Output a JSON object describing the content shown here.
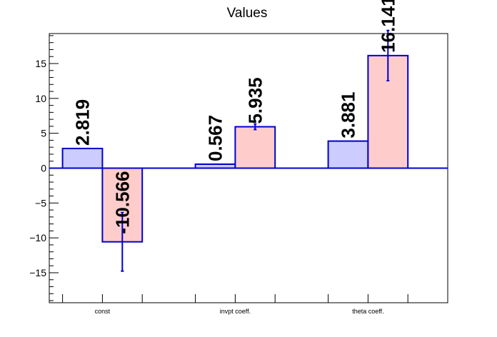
{
  "chart_data": {
    "type": "bar",
    "title": "Values",
    "xlabel": "",
    "ylabel": "",
    "ylim": [
      -19.3,
      19.3
    ],
    "yticks": [
      -15,
      -10,
      -5,
      0,
      5,
      10,
      15
    ],
    "ytick_labels": [
      "−15",
      "−10",
      "−5",
      "0",
      "5",
      "10",
      "15"
    ],
    "categories": [
      "const",
      "invpt coeff.",
      "theta coeff."
    ],
    "series": [
      {
        "values": [
          2.819,
          0.567,
          3.881
        ],
        "labels": [
          "2.819",
          "0.567",
          "3.881"
        ],
        "errors": [
          0,
          0,
          0
        ],
        "fill": "#ccccff",
        "stroke": "#0000cc"
      },
      {
        "values": [
          -10.566,
          5.935,
          16.141
        ],
        "labels": [
          "-10.566",
          "5.935",
          "16.141"
        ],
        "errors": [
          4.2,
          0.4,
          3.6
        ],
        "fill": "#ffcccc",
        "stroke": "#0000cc"
      }
    ],
    "grid": false,
    "axis_color": "#000000",
    "zero_line_color": "#0000cc"
  }
}
